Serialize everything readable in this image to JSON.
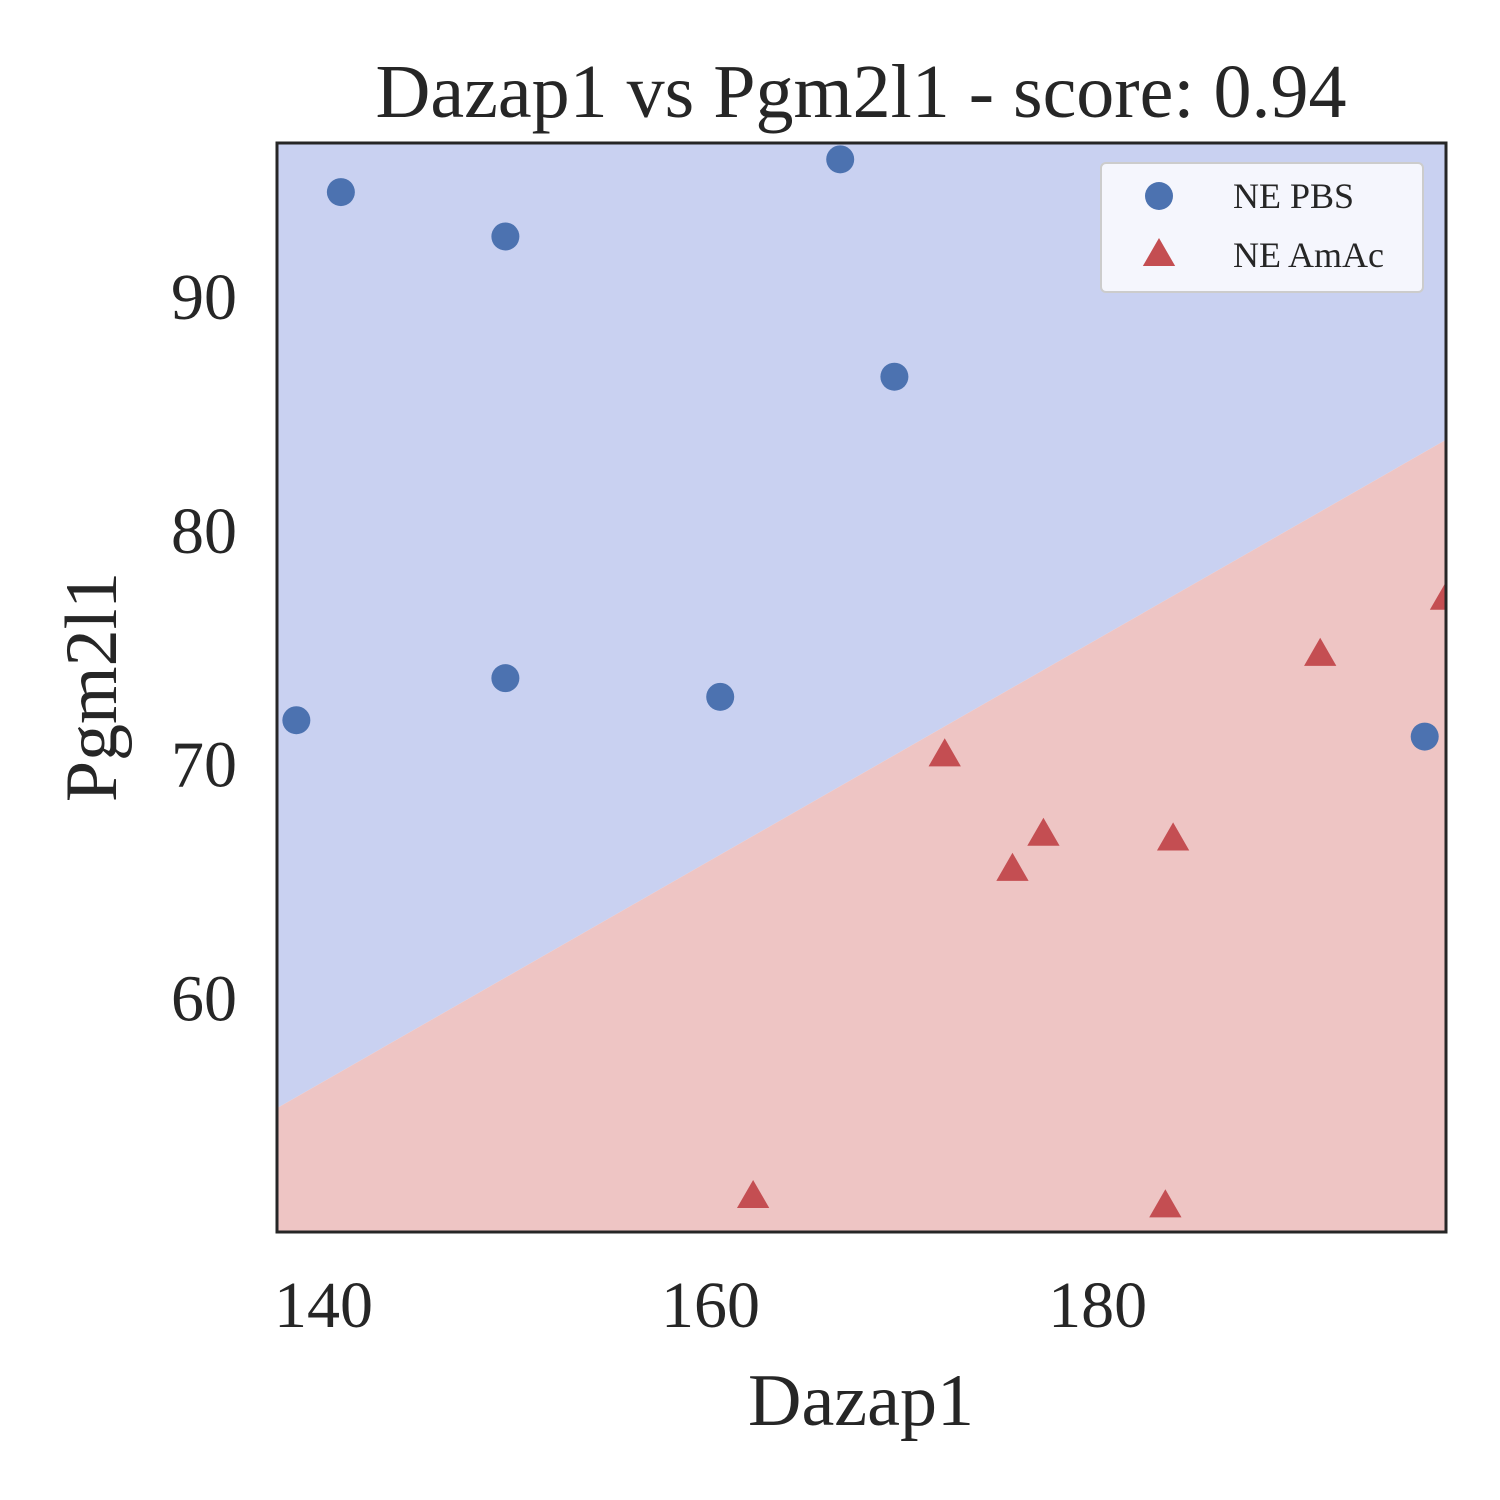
{
  "chart_data": {
    "type": "scatter",
    "title": "Dazap1 vs Pgm2l1 - score: 0.94",
    "xlabel": "Dazap1",
    "ylabel": "Pgm2l1",
    "xlim": [
      137.6,
      198.0
    ],
    "ylim": [
      50.0,
      96.6
    ],
    "x_ticks": [
      140,
      160,
      180
    ],
    "y_ticks": [
      60,
      70,
      80,
      90
    ],
    "grid": false,
    "legend_position": "top-right",
    "decision_boundary": {
      "line": [
        [
          137.6,
          55.3
        ],
        [
          198.0,
          83.9
        ]
      ],
      "upper_region_color": "#c9d1f1",
      "lower_region_color": "#eec5c4"
    },
    "series": [
      {
        "name": "NE PBS",
        "marker": "circle",
        "color": "#4c72b0",
        "points": [
          [
            138.6,
            71.9
          ],
          [
            140.9,
            94.5
          ],
          [
            149.4,
            92.6
          ],
          [
            149.4,
            73.7
          ],
          [
            160.5,
            72.9
          ],
          [
            166.7,
            95.9
          ],
          [
            169.5,
            86.6
          ],
          [
            196.9,
            71.2
          ]
        ]
      },
      {
        "name": "NE AmAc",
        "marker": "triangle",
        "color": "#c44e52",
        "points": [
          [
            162.2,
            51.5
          ],
          [
            172.1,
            70.4
          ],
          [
            175.6,
            65.5
          ],
          [
            177.2,
            67.0
          ],
          [
            183.5,
            51.1
          ],
          [
            183.9,
            66.8
          ],
          [
            191.5,
            74.7
          ],
          [
            198.0,
            77.1
          ]
        ]
      }
    ]
  }
}
